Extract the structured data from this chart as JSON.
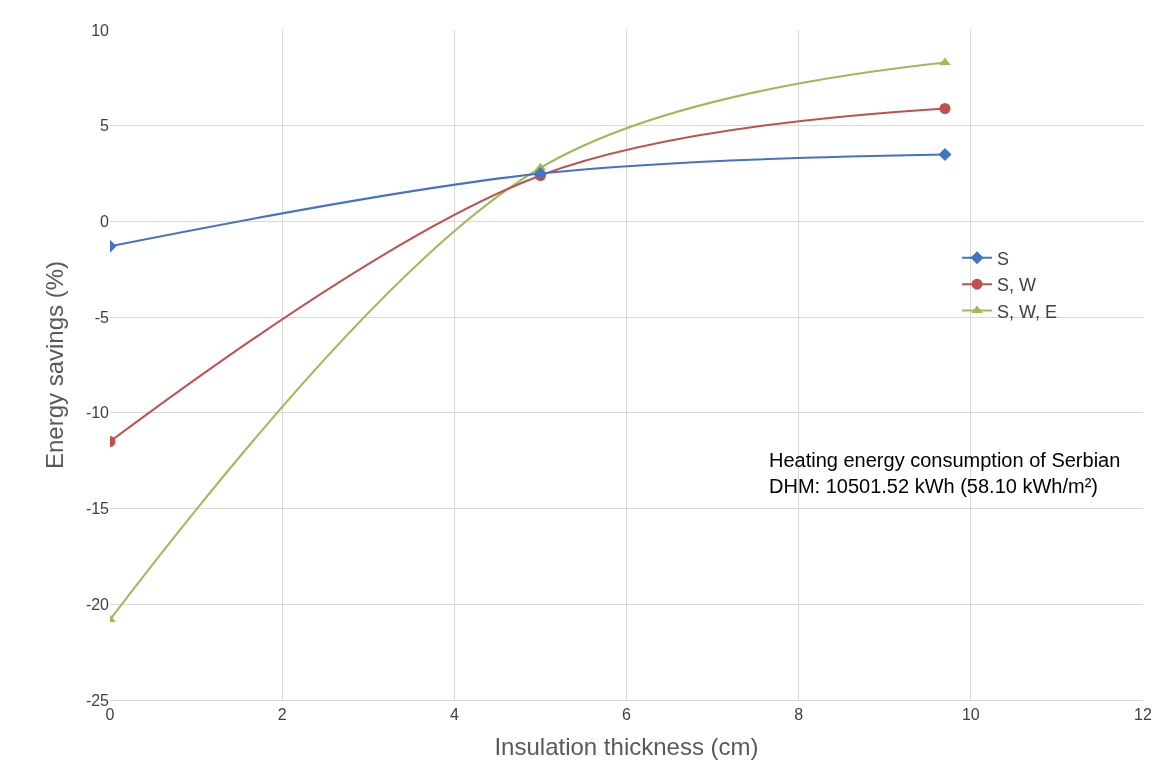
{
  "chart_data": {
    "type": "line",
    "xlabel": "Insulation thickness (cm)",
    "ylabel": "Energy savings (%)",
    "x": [
      0,
      5,
      9.7
    ],
    "series": [
      {
        "name": "S",
        "color": "#4472c4",
        "marker": "diamond",
        "values": [
          -1.3,
          2.5,
          3.5
        ]
      },
      {
        "name": "S, W",
        "color": "#c0504d",
        "marker": "circle",
        "values": [
          -11.5,
          2.4,
          5.9
        ]
      },
      {
        "name": "S, W, E",
        "color": "#9bbb59",
        "marker": "triangle",
        "values": [
          -20.8,
          2.8,
          8.3
        ]
      }
    ],
    "xlim": [
      0,
      12
    ],
    "xticks": [
      0,
      2,
      4,
      6,
      8,
      10,
      12
    ],
    "ylim": [
      -25,
      10
    ],
    "yticks": [
      -25,
      -20,
      -15,
      -10,
      -5,
      0,
      5,
      10
    ],
    "grid": true,
    "legend": "right",
    "line_style": "solid",
    "annotations": [
      "Heating energy consumption of Serbian\nDHM: 10501.52 kWh (58.10 kWh/m²)"
    ]
  }
}
